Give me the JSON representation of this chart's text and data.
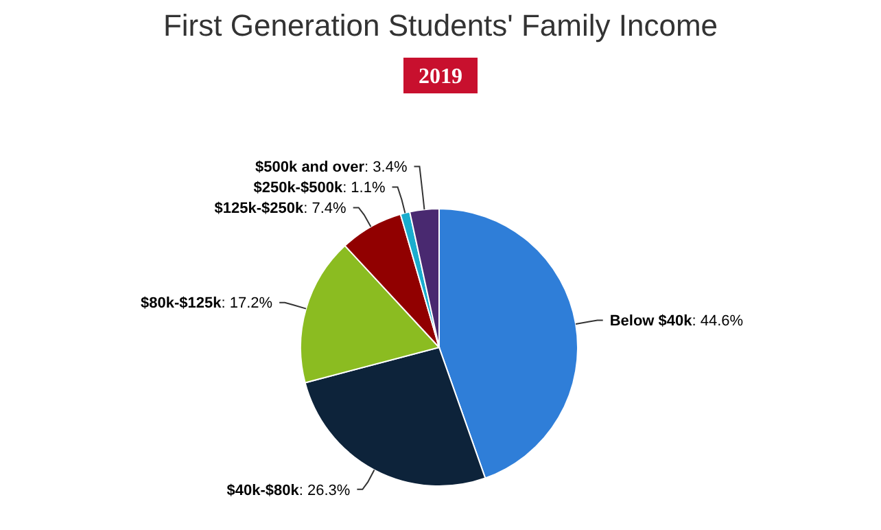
{
  "chart_data": {
    "type": "pie",
    "title": "First Generation Students' Family Income",
    "subtitle": "2019",
    "categories": [
      "Below $40k",
      "$40k-$80k",
      "$80k-$125k",
      "$125k-$250k",
      "$250k-$500k",
      "$500k and over"
    ],
    "values": [
      44.6,
      26.3,
      17.2,
      7.4,
      1.1,
      3.4
    ],
    "colors": [
      "#2f7ed8",
      "#0d233a",
      "#8bbc21",
      "#910000",
      "#1aadce",
      "#492970"
    ],
    "value_labels": [
      ": 44.6%",
      ": 26.3%",
      ": 17.2%",
      ": 7.4%",
      ": 1.1%",
      ": 3.4%"
    ]
  }
}
